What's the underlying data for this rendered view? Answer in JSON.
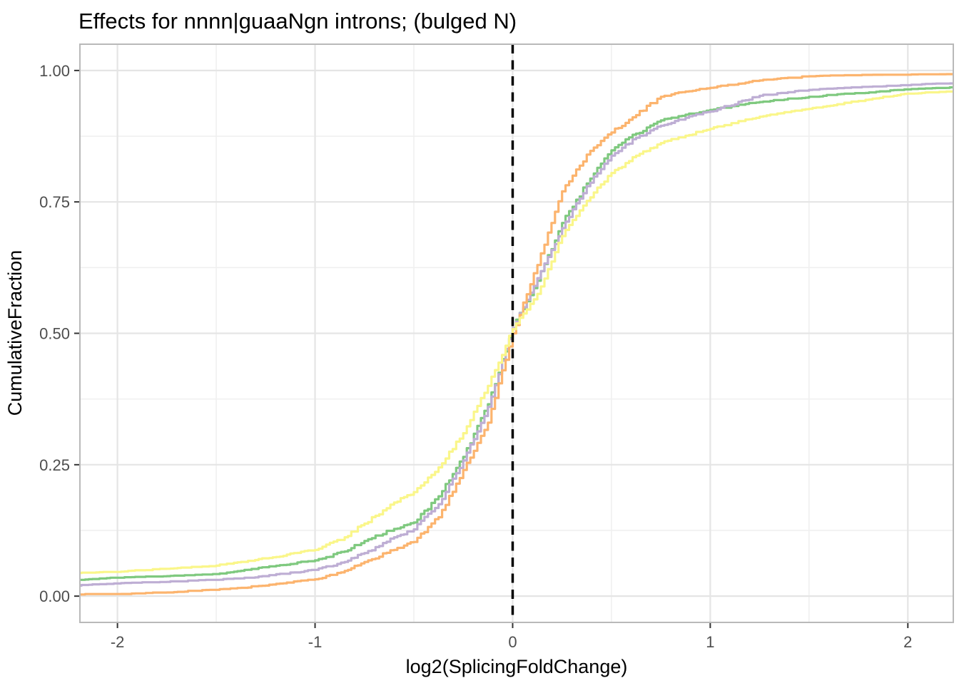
{
  "chart_data": {
    "type": "line",
    "subtype": "ecdf",
    "title": "Effects for nnnn|guaaNgn introns; (bulged N)",
    "xlabel": "log2(SplicingFoldChange)",
    "ylabel": "CumulativeFraction",
    "xlim": [
      -2.19,
      2.23
    ],
    "ylim": [
      -0.05,
      1.05
    ],
    "grid": "major+minor",
    "legend": "none",
    "x_ticks": {
      "values": [
        -2,
        -1,
        0,
        1,
        2
      ],
      "labels": [
        "-2",
        "-1",
        "0",
        "1",
        "2"
      ],
      "minor": [
        -1.5,
        -0.5,
        0.5,
        1.5
      ]
    },
    "y_ticks": {
      "values": [
        0,
        0.25,
        0.5,
        0.75,
        1
      ],
      "labels": [
        "0.00",
        "0.25",
        "0.50",
        "0.75",
        "1.00"
      ],
      "minor": [
        0.125,
        0.375,
        0.625,
        0.875
      ]
    },
    "reference_line": {
      "x": 0,
      "style": "dashed",
      "color": "#000000"
    },
    "x": [
      -2.2,
      -2.0,
      -1.75,
      -1.5,
      -1.25,
      -1.0,
      -0.85,
      -0.75,
      -0.6,
      -0.5,
      -0.375,
      -0.25,
      -0.125,
      0.0,
      0.125,
      0.25,
      0.375,
      0.5,
      0.625,
      0.75,
      0.875,
      1.0,
      1.25,
      1.5,
      1.75,
      2.0,
      2.23
    ],
    "series": [
      {
        "name": "green",
        "color": "#7FC97F",
        "values": [
          0.031,
          0.035,
          0.038,
          0.042,
          0.055,
          0.068,
          0.085,
          0.105,
          0.128,
          0.14,
          0.19,
          0.265,
          0.365,
          0.51,
          0.6,
          0.71,
          0.785,
          0.848,
          0.88,
          0.905,
          0.916,
          0.925,
          0.94,
          0.95,
          0.957,
          0.964,
          0.968
        ]
      },
      {
        "name": "purple",
        "color": "#BEAED4",
        "values": [
          0.02,
          0.024,
          0.027,
          0.031,
          0.038,
          0.05,
          0.065,
          0.082,
          0.112,
          0.127,
          0.175,
          0.258,
          0.36,
          0.51,
          0.605,
          0.7,
          0.78,
          0.838,
          0.872,
          0.895,
          0.91,
          0.922,
          0.952,
          0.963,
          0.968,
          0.972,
          0.976
        ]
      },
      {
        "name": "orange",
        "color": "#FCB46E",
        "values": [
          0.003,
          0.004,
          0.007,
          0.012,
          0.02,
          0.032,
          0.048,
          0.065,
          0.088,
          0.103,
          0.15,
          0.24,
          0.33,
          0.5,
          0.63,
          0.77,
          0.84,
          0.882,
          0.915,
          0.95,
          0.96,
          0.967,
          0.981,
          0.989,
          0.991,
          0.992,
          0.993
        ]
      },
      {
        "name": "yellow",
        "color": "#FAF68A",
        "values": [
          0.044,
          0.046,
          0.052,
          0.058,
          0.072,
          0.088,
          0.112,
          0.138,
          0.178,
          0.198,
          0.245,
          0.31,
          0.4,
          0.508,
          0.575,
          0.685,
          0.752,
          0.805,
          0.838,
          0.862,
          0.876,
          0.889,
          0.912,
          0.927,
          0.942,
          0.956,
          0.96
        ]
      }
    ],
    "style_colors": {
      "panel_border": "#b9b9b9",
      "grid_major": "#e5e5e5",
      "grid_minor": "#f0f0f0",
      "tick_mark": "#333333",
      "tick_text": "#4d4d4d",
      "title_text": "#000000"
    }
  }
}
